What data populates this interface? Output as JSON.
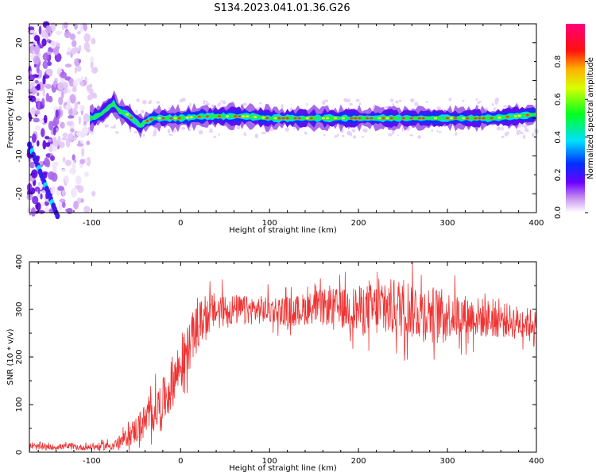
{
  "title": "S134.2023.041.01.36.G26",
  "colors": {
    "snr_line": "#ee3333",
    "axis": "#000000",
    "background": "#ffffff"
  },
  "chart_data": [
    {
      "type": "heatmap",
      "panel": "spectrogram",
      "xlabel": "Height of straight line (km)",
      "ylabel": "Frequency (Hz)",
      "xlim": [
        -170,
        400
      ],
      "ylim": [
        -25,
        25
      ],
      "xticks": [
        -100,
        0,
        100,
        200,
        300,
        400
      ],
      "yticks": [
        -20,
        -10,
        0,
        10,
        20
      ],
      "colorbar": {
        "label": "Normalized spectral amplitude",
        "range": [
          0,
          1
        ],
        "ticks": [
          0.0,
          0.2,
          0.4,
          0.6,
          0.8
        ],
        "tick_labels": [
          "0.0",
          "0.2",
          "0.4",
          "0.6",
          "0.8"
        ],
        "colormap": "rainbow (white-violet-blue-cyan-green-yellow-red-magenta)"
      },
      "peak_frequency_track": {
        "x": [
          -100,
          -90,
          -80,
          -75,
          -70,
          -60,
          -50,
          -45,
          -40,
          -30,
          -20,
          -10,
          0,
          25,
          50,
          75,
          100,
          125,
          150,
          175,
          200,
          225,
          250,
          275,
          300,
          325,
          350,
          375,
          400
        ],
        "y": [
          0,
          1,
          3,
          4,
          2,
          1,
          -1,
          -2,
          -1,
          0,
          0,
          0,
          0,
          0.5,
          0.5,
          0.5,
          0,
          0,
          0,
          0,
          0,
          0,
          0,
          0,
          0,
          0,
          0,
          0.5,
          1
        ]
      },
      "notes": "Diffuse noise (no coherent signal) for heights below about -100 km"
    },
    {
      "type": "line",
      "panel": "snr",
      "xlabel": "Height of straight line (km)",
      "ylabel": "SNR (10 * v/v)",
      "xlim": [
        -170,
        400
      ],
      "ylim": [
        0,
        400
      ],
      "xticks": [
        -100,
        0,
        100,
        200,
        300,
        400
      ],
      "yticks": [
        0,
        100,
        200,
        300,
        400
      ],
      "series": [
        {
          "x": [
            -170,
            -150,
            -130,
            -110,
            -90,
            -75,
            -65,
            -55,
            -45,
            -35,
            -25,
            -15,
            -5,
            5,
            15,
            25,
            35,
            50,
            75,
            100,
            125,
            150,
            175,
            200,
            225,
            250,
            275,
            300,
            325,
            350,
            375,
            400
          ],
          "y": [
            12,
            10,
            12,
            10,
            12,
            15,
            25,
            40,
            55,
            75,
            95,
            120,
            165,
            200,
            250,
            280,
            295,
            300,
            298,
            300,
            295,
            305,
            305,
            300,
            300,
            305,
            295,
            290,
            285,
            280,
            275,
            270
          ],
          "spread": [
            6,
            6,
            6,
            6,
            8,
            10,
            15,
            25,
            35,
            40,
            45,
            50,
            55,
            55,
            50,
            45,
            40,
            35,
            30,
            30,
            32,
            35,
            40,
            50,
            60,
            65,
            60,
            50,
            45,
            40,
            35,
            30
          ]
        }
      ]
    }
  ]
}
